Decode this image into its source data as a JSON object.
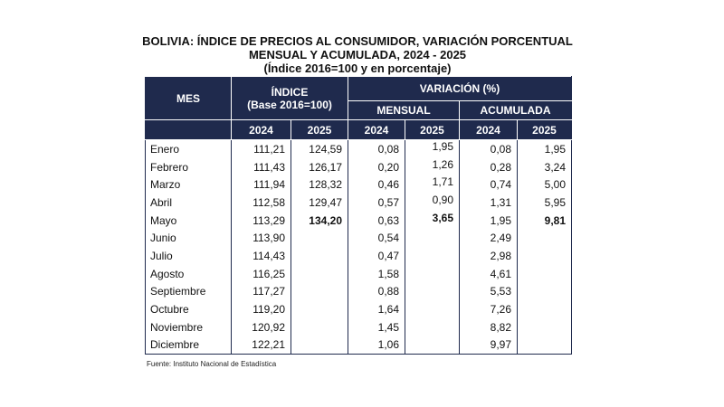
{
  "title": {
    "line1": "BOLIVIA: ÍNDICE DE PRECIOS AL CONSUMIDOR, VARIACIÓN PORCENTUAL",
    "line2": "MENSUAL Y ACUMULADA, 2024 - 2025",
    "line3": "(Índice 2016=100 y en porcentaje)"
  },
  "header": {
    "mes": "MES",
    "indice": "ÍNDICE",
    "indice_base": "(Base 2016=100)",
    "variacion": "VARIACIÓN (%)",
    "mensual": "MENSUAL",
    "acumulada": "ACUMULADA",
    "years": [
      "2024",
      "2025",
      "2024",
      "2025",
      "2024",
      "2025"
    ]
  },
  "chart_data": {
    "type": "table",
    "title": "BOLIVIA: ÍNDICE DE PRECIOS AL CONSUMIDOR, VARIACIÓN PORCENTUAL MENSUAL Y ACUMULADA, 2024 - 2025",
    "columns": [
      "MES",
      "ÍNDICE 2024",
      "ÍNDICE 2025",
      "MENSUAL 2024",
      "MENSUAL 2025",
      "ACUMULADA 2024",
      "ACUMULADA 2025"
    ],
    "rows": [
      [
        "Enero",
        "111,21",
        "124,59",
        "0,08",
        "1,95",
        "0,08",
        "1,95"
      ],
      [
        "Febrero",
        "111,43",
        "126,17",
        "0,20",
        "1,26",
        "0,28",
        "3,24"
      ],
      [
        "Marzo",
        "111,94",
        "128,32",
        "0,46",
        "1,71",
        "0,74",
        "5,00"
      ],
      [
        "Abril",
        "112,58",
        "129,47",
        "0,57",
        "0,90",
        "1,31",
        "5,95"
      ],
      [
        "Mayo",
        "113,29",
        "134,20",
        "0,63",
        "3,65",
        "1,95",
        "9,81"
      ],
      [
        "Junio",
        "113,90",
        "",
        "0,54",
        "",
        "2,49",
        ""
      ],
      [
        "Julio",
        "114,43",
        "",
        "0,47",
        "",
        "2,98",
        ""
      ],
      [
        "Agosto",
        "116,25",
        "",
        "1,58",
        "",
        "4,61",
        ""
      ],
      [
        "Septiembre",
        "117,27",
        "",
        "0,88",
        "",
        "5,53",
        ""
      ],
      [
        "Octubre",
        "119,20",
        "",
        "1,64",
        "",
        "7,26",
        ""
      ],
      [
        "Noviembre",
        "120,92",
        "",
        "1,45",
        "",
        "8,82",
        ""
      ],
      [
        "Diciembre",
        "122,21",
        "",
        "1,06",
        "",
        "9,97",
        ""
      ]
    ]
  },
  "source": "Fuente: Instituto Nacional de Estadística"
}
